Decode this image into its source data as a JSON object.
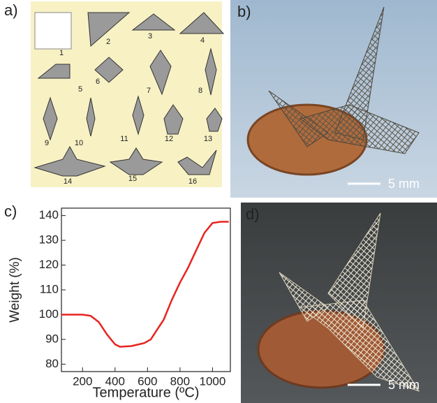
{
  "panels": {
    "a": {
      "label": "a)",
      "steps": [
        "1",
        "2",
        "3",
        "4",
        "5",
        "6",
        "7",
        "8",
        "9",
        "10",
        "11",
        "12",
        "13",
        "14",
        "15",
        "16"
      ]
    },
    "b": {
      "label": "b)",
      "scale_bar": "5 mm"
    },
    "c": {
      "label": "c)"
    },
    "d": {
      "label": "d)",
      "scale_bar": "5 mm"
    }
  },
  "chart_data": {
    "type": "line",
    "x_label": "Temperature (ºC)",
    "y_label": "Weight (%)",
    "xlim": [
      70,
      1110
    ],
    "ylim": [
      77,
      143
    ],
    "xticks": [
      200,
      400,
      600,
      800,
      1000
    ],
    "yticks": [
      80,
      90,
      100,
      110,
      120,
      130,
      140
    ],
    "x": [
      70,
      200,
      250,
      300,
      350,
      400,
      430,
      500,
      580,
      620,
      660,
      700,
      750,
      800,
      850,
      900,
      950,
      1000,
      1050,
      1100
    ],
    "series": [
      {
        "color": "#e8231e",
        "values": [
          100,
          100,
          99.5,
          97,
          92,
          88,
          87,
          87.3,
          88.5,
          90,
          94,
          98,
          106,
          113,
          119,
          126,
          133,
          137,
          137.5,
          137.5
        ]
      }
    ]
  }
}
